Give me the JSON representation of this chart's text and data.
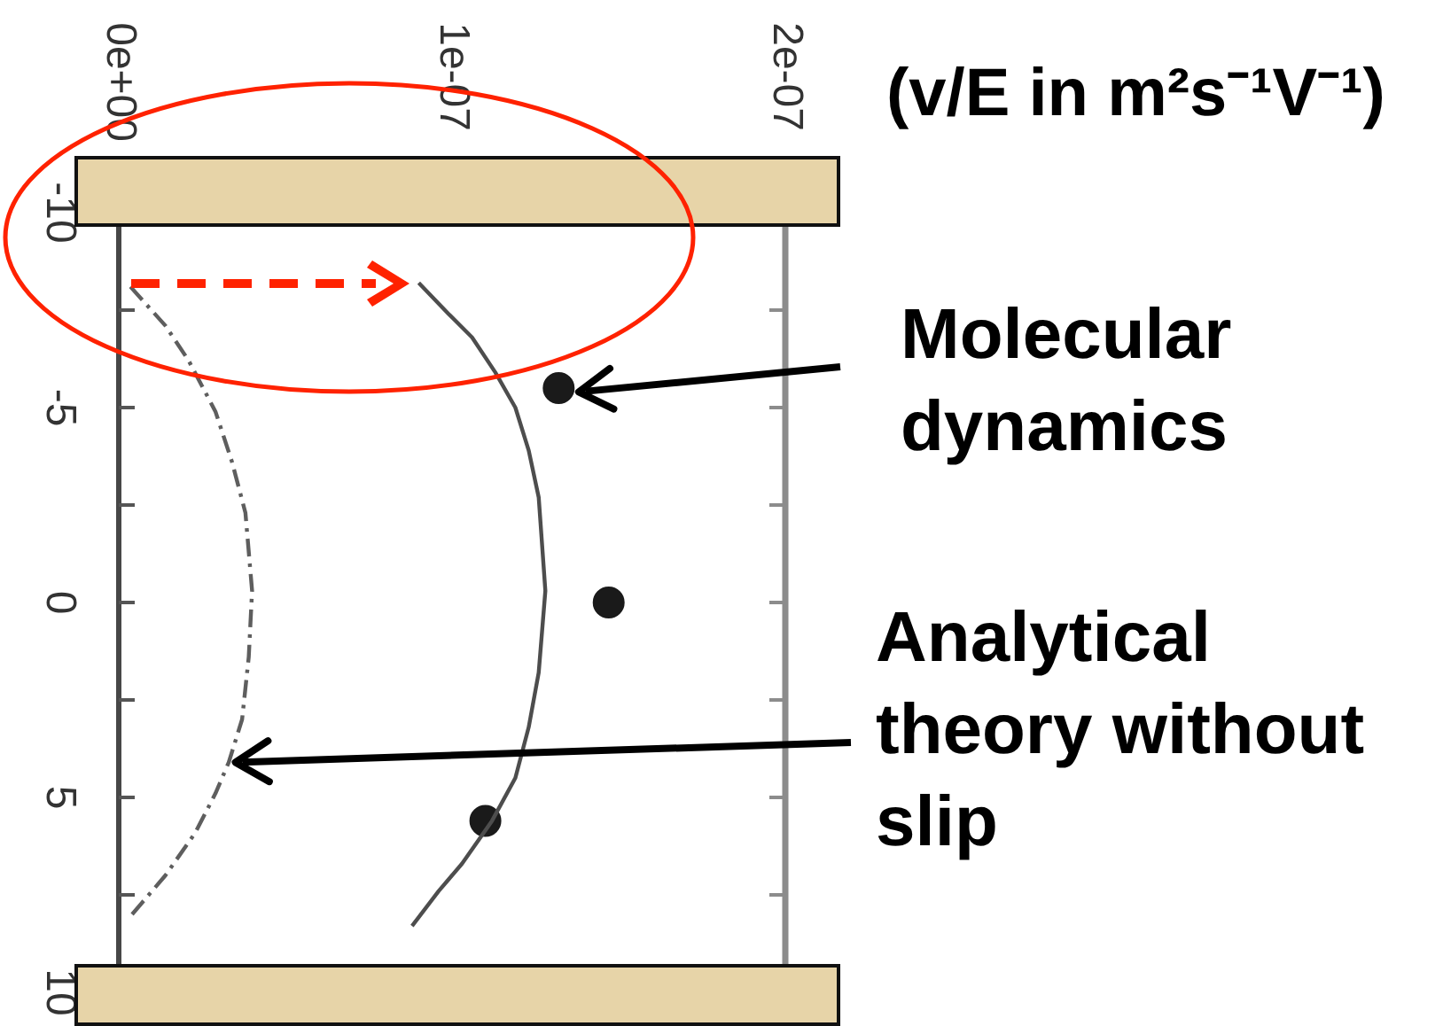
{
  "chart_data": {
    "type": "line",
    "xlabel": "(v/E in m²s⁻¹V⁻¹)",
    "xlim": [
      0,
      2e-07
    ],
    "xticks": [
      {
        "value": 0,
        "label": "0e+00"
      },
      {
        "value": 1e-07,
        "label": "1e-07"
      },
      {
        "value": 2e-07,
        "label": "2e-07"
      }
    ],
    "ylim": [
      10,
      -10
    ],
    "yticks": [
      -10,
      {
        "value": -7.5,
        "label": null
      },
      -5,
      {
        "value": -2.5,
        "label": null
      },
      0,
      {
        "value": 2.5,
        "label": null
      },
      5,
      {
        "value": 7.5,
        "label": null
      },
      10
    ],
    "series": [
      {
        "color": "#4d4d4d",
        "line_style": "solid",
        "x": [
          9e-08,
          9.9e-08,
          1.06e-07,
          1.13e-07,
          1.19e-07,
          1.23e-07,
          1.26e-07,
          1.28e-07,
          1.26e-07,
          1.23e-07,
          1.19e-07,
          1.12e-07,
          1.03e-07,
          9.6e-08,
          8.8e-08
        ],
        "values": [
          -8.2,
          -7.4,
          -6.8,
          -5.9,
          -5.0,
          -3.9,
          -2.7,
          -0.3,
          1.8,
          3.2,
          4.5,
          5.6,
          6.7,
          7.4,
          8.3
        ]
      },
      {
        "color": "#5e5e5e",
        "line_style": "dashed",
        "x": [
          3.5e-09,
          1.4e-08,
          2.1e-08,
          2.9e-08,
          3.4e-08,
          3.8e-08,
          4e-08,
          3.9e-08,
          3.7e-08,
          3.3e-08,
          2.9e-08,
          2.3e-08,
          1.4e-08,
          4e-09
        ],
        "values": [
          -8.1,
          -7.1,
          -6.2,
          -4.9,
          -3.6,
          -2.3,
          -0.3,
          1.4,
          3.0,
          4.1,
          4.9,
          5.9,
          7.0,
          8.0
        ]
      },
      {
        "type": "scatter",
        "color": "#1a1a1a",
        "marker": "circle",
        "x": [
          1.32e-07,
          1.47e-07,
          1.1e-07
        ],
        "values": [
          -5.5,
          0,
          5.6
        ]
      }
    ],
    "annotations": [
      {
        "text": "Molecular dynamics",
        "x": 1.38e-07,
        "y": -5.4
      },
      {
        "text": "Analytical theory without slip",
        "x": 3.5e-08,
        "y": 4.1
      }
    ]
  }
}
